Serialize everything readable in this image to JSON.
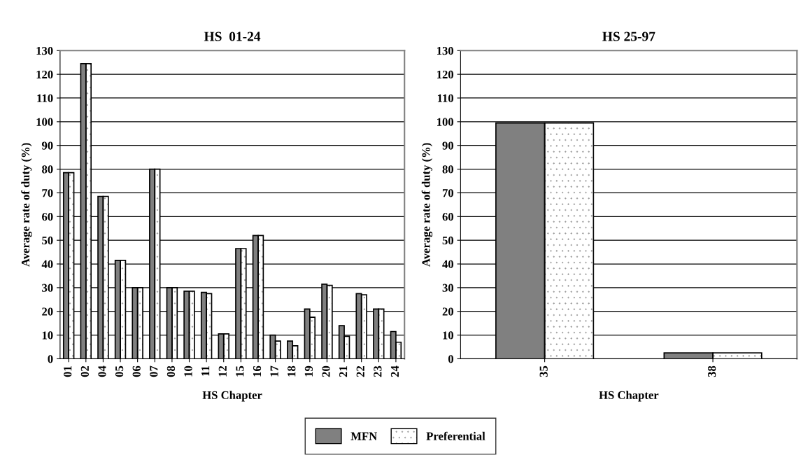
{
  "chart_data": [
    {
      "type": "bar",
      "title": "HS  01-24",
      "xlabel": "HS Chapter",
      "ylabel": "Average rate of duty (%)",
      "categories": [
        "01",
        "02",
        "04",
        "05",
        "06",
        "07",
        "08",
        "10",
        "11",
        "12",
        "15",
        "16",
        "17",
        "18",
        "19",
        "20",
        "21",
        "22",
        "23",
        "24"
      ],
      "series": [
        {
          "name": "MFN",
          "color": "#808080",
          "values": [
            78.5,
            124.5,
            68.5,
            41.5,
            30,
            80,
            30,
            28.5,
            28,
            10.5,
            46.5,
            52,
            10,
            7.5,
            21,
            31.5,
            14,
            27.5,
            21,
            11.5
          ]
        },
        {
          "name": "Preferential",
          "color": "#ffffff",
          "values": [
            78.5,
            124.5,
            68.5,
            41.5,
            30,
            80,
            30,
            28.5,
            27.5,
            10.5,
            46.5,
            52,
            7.5,
            5.5,
            17.5,
            31,
            9.5,
            27,
            21,
            7
          ]
        }
      ],
      "ylim": [
        0,
        130
      ],
      "yticks": [
        0,
        10,
        20,
        30,
        40,
        50,
        60,
        70,
        80,
        90,
        100,
        110,
        120,
        130
      ],
      "grid": "y",
      "legend": "bottom"
    },
    {
      "type": "bar",
      "title": "HS 25-97",
      "xlabel": "HS Chapter",
      "ylabel": "Average rate of duty (%)",
      "categories": [
        "35",
        "38"
      ],
      "series": [
        {
          "name": "MFN",
          "color": "#808080",
          "values": [
            99.5,
            2.5
          ]
        },
        {
          "name": "Preferential",
          "color": "#ffffff",
          "values": [
            99.5,
            2.5
          ]
        }
      ],
      "ylim": [
        0,
        130
      ],
      "yticks": [
        0,
        10,
        20,
        30,
        40,
        50,
        60,
        70,
        80,
        90,
        100,
        110,
        120,
        130
      ],
      "grid": "y"
    }
  ]
}
